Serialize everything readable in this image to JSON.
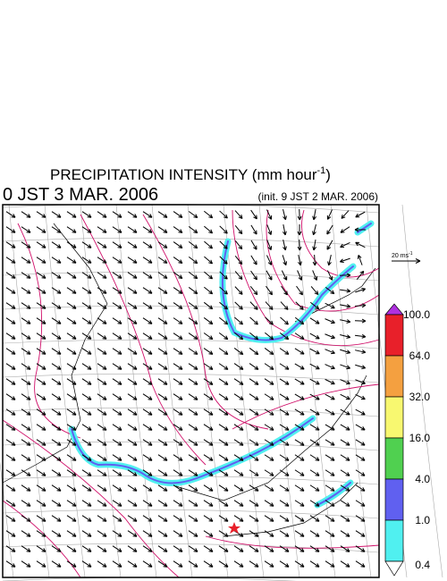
{
  "title": {
    "text": "PRECIPITATION INTENSITY (mm hour",
    "exponent": "-1",
    "close": ")"
  },
  "valid_time": "0 JST 3 MAR. 2006",
  "init_time": "(init. 9 JST 2 MAR. 2006)",
  "reference_vector": {
    "label": "20 ms",
    "exponent": "-1"
  },
  "colorbar": {
    "levels": [
      "100.0",
      "64.0",
      "32.0",
      "16.0",
      "4.0",
      "1.0",
      "0.4"
    ],
    "colors": [
      "#b030e0",
      "#e8202a",
      "#f4a040",
      "#f8f870",
      "#50d050",
      "#6060f0",
      "#50f0f0",
      "#ffffff"
    ]
  }
}
